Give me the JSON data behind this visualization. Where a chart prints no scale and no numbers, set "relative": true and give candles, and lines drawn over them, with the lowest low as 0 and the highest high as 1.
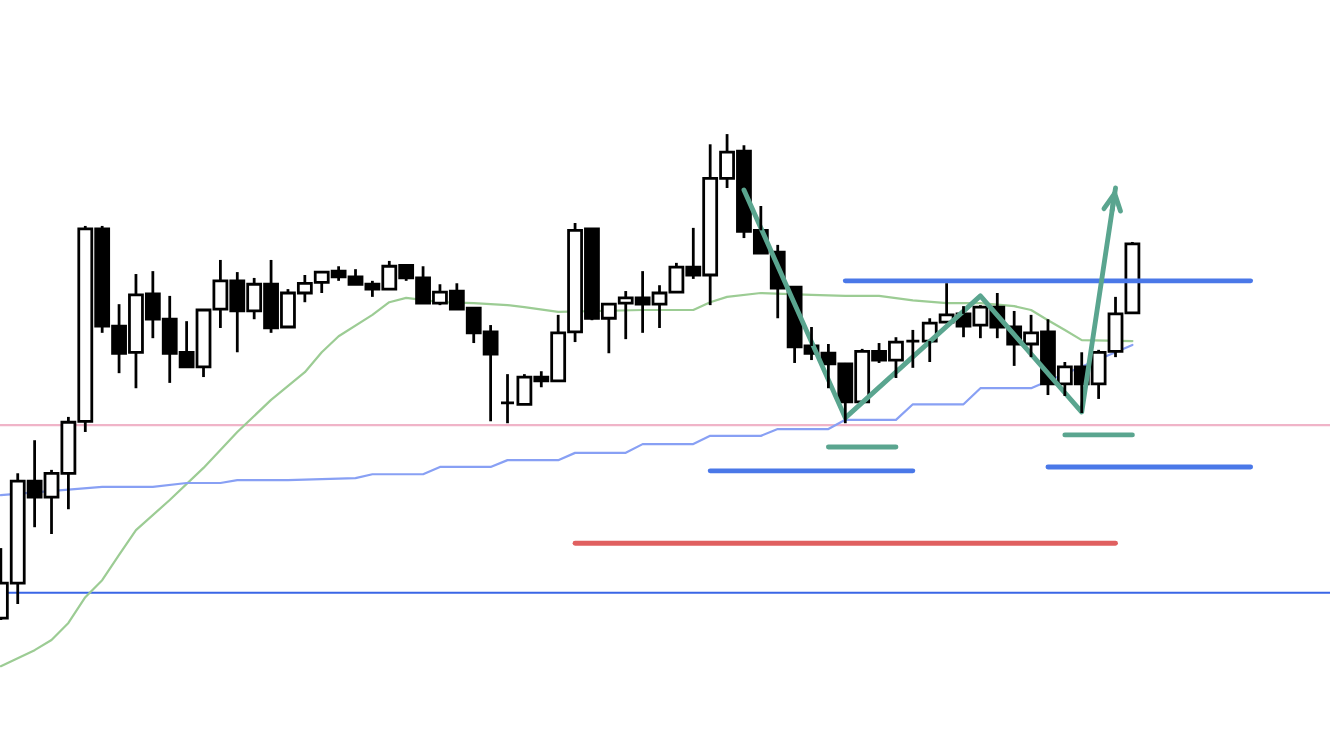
{
  "chart_data": {
    "type": "candlestick",
    "relative": true,
    "grid": false,
    "categories": [
      null,
      null,
      null,
      null,
      null,
      null,
      null,
      null,
      null,
      null,
      null,
      null,
      null,
      null,
      null,
      null,
      null,
      null,
      null,
      null,
      null,
      null,
      null,
      null,
      null,
      null,
      null,
      null,
      null,
      null,
      null,
      null,
      null,
      null,
      null,
      null,
      null,
      null,
      null,
      null,
      null,
      null,
      null,
      null,
      null,
      null,
      null,
      null,
      null,
      null,
      null,
      null,
      null,
      null,
      null,
      null,
      null,
      null,
      null,
      null,
      null,
      null,
      null,
      null,
      null,
      null,
      null,
      null,
      null,
      null,
      null,
      null,
      null,
      null,
      null,
      null,
      null,
      null,
      null
    ],
    "ohlc": [
      [
        0.004,
        0.148,
        0,
        0.076
      ],
      [
        0.076,
        0.302,
        0.033,
        0.286
      ],
      [
        0.286,
        0.37,
        0.191,
        0.253
      ],
      [
        0.253,
        0.309,
        0.177,
        0.302
      ],
      [
        0.302,
        0.418,
        0.228,
        0.407
      ],
      [
        0.409,
        0.811,
        0.387,
        0.805
      ],
      [
        0.805,
        0.811,
        0.591,
        0.605
      ],
      [
        0.605,
        0.65,
        0.508,
        0.549
      ],
      [
        0.551,
        0.712,
        0.477,
        0.669
      ],
      [
        0.671,
        0.718,
        0.58,
        0.619
      ],
      [
        0.619,
        0.667,
        0.488,
        0.549
      ],
      [
        0.551,
        0.615,
        0.521,
        0.521
      ],
      [
        0.521,
        0.64,
        0.5,
        0.638
      ],
      [
        0.64,
        0.741,
        0.601,
        0.698
      ],
      [
        0.698,
        0.716,
        0.551,
        0.636
      ],
      [
        0.636,
        0.704,
        0.619,
        0.691
      ],
      [
        0.691,
        0.741,
        0.591,
        0.601
      ],
      [
        0.603,
        0.681,
        0.603,
        0.673
      ],
      [
        0.673,
        0.71,
        0.654,
        0.693
      ],
      [
        0.695,
        0.716,
        0.673,
        0.716
      ],
      [
        0.718,
        0.728,
        0.698,
        0.706
      ],
      [
        0.706,
        0.722,
        0.691,
        0.691
      ],
      [
        0.691,
        0.698,
        0.665,
        0.681
      ],
      [
        0.681,
        0.739,
        0.681,
        0.728
      ],
      [
        0.73,
        0.73,
        0.698,
        0.704
      ],
      [
        0.704,
        0.728,
        0.652,
        0.652
      ],
      [
        0.652,
        0.691,
        0.648,
        0.675
      ],
      [
        0.677,
        0.693,
        0.64,
        0.64
      ],
      [
        0.642,
        0.642,
        0.57,
        0.591
      ],
      [
        0.593,
        0.607,
        0.409,
        0.547
      ],
      [
        0.447,
        0.506,
        0.405,
        0.447
      ],
      [
        0.444,
        0.506,
        0.444,
        0.5
      ],
      [
        0.5,
        0.512,
        0.479,
        0.492
      ],
      [
        0.492,
        0.628,
        0.492,
        0.591
      ],
      [
        0.593,
        0.817,
        0.572,
        0.802
      ],
      [
        0.805,
        0.805,
        0.617,
        0.621
      ],
      [
        0.621,
        0.65,
        0.549,
        0.65
      ],
      [
        0.652,
        0.677,
        0.578,
        0.663
      ],
      [
        0.663,
        0.718,
        0.591,
        0.65
      ],
      [
        0.65,
        0.689,
        0.601,
        0.673
      ],
      [
        0.675,
        0.735,
        0.673,
        0.726
      ],
      [
        0.726,
        0.807,
        0.702,
        0.71
      ],
      [
        0.71,
        0.979,
        0.648,
        0.909
      ],
      [
        0.909,
        1.0,
        0.889,
        0.963
      ],
      [
        0.965,
        0.977,
        0.786,
        0.8
      ],
      [
        0.802,
        0.852,
        0.755,
        0.755
      ],
      [
        0.757,
        0.772,
        0.621,
        0.683
      ],
      [
        0.685,
        0.685,
        0.529,
        0.562
      ],
      [
        0.564,
        0.603,
        0.535,
        0.549
      ],
      [
        0.549,
        0.568,
        0.477,
        0.527
      ],
      [
        0.527,
        0.529,
        0.405,
        0.449
      ],
      [
        0.449,
        0.558,
        0.449,
        0.553
      ],
      [
        0.553,
        0.57,
        0.529,
        0.535
      ],
      [
        0.535,
        0.582,
        0.498,
        0.572
      ],
      [
        0.574,
        0.597,
        0.519,
        0.574
      ],
      [
        0.574,
        0.621,
        0.531,
        0.611
      ],
      [
        0.613,
        0.693,
        0.613,
        0.628
      ],
      [
        0.63,
        0.646,
        0.582,
        0.605
      ],
      [
        0.607,
        0.648,
        0.58,
        0.644
      ],
      [
        0.644,
        0.673,
        0.58,
        0.603
      ],
      [
        0.603,
        0.636,
        0.523,
        0.568
      ],
      [
        0.568,
        0.628,
        0.541,
        0.591
      ],
      [
        0.593,
        0.619,
        0.463,
        0.486
      ],
      [
        0.486,
        0.531,
        0.461,
        0.521
      ],
      [
        0.521,
        0.551,
        0.426,
        0.486
      ],
      [
        0.486,
        0.556,
        0.455,
        0.551
      ],
      [
        0.553,
        0.665,
        0.541,
        0.63
      ],
      [
        0.632,
        0.778,
        0.63,
        0.774
      ],
      null,
      null,
      null,
      null,
      null,
      null,
      null,
      null,
      null,
      null,
      null
    ],
    "series": [
      {
        "type": "line",
        "color": "#9ccc94",
        "values": [
          -0.095,
          null,
          -0.062,
          -0.041,
          -0.006,
          0.047,
          0.082,
          0.134,
          0.185,
          null,
          0.247,
          null,
          0.313,
          null,
          0.387,
          null,
          0.453,
          null,
          0.51,
          0.551,
          0.584,
          null,
          0.628,
          0.654,
          0.663,
          null,
          0.654,
          null,
          0.652,
          null,
          0.648,
          0.644,
          null,
          0.634,
          null,
          null,
          null,
          null,
          0.638,
          null,
          0.638,
          0.638,
          0.654,
          0.665,
          null,
          0.673,
          null,
          null,
          0.669,
          null,
          0.667,
          null,
          0.667,
          null,
          0.658,
          null,
          0.652,
          null,
          0.652,
          null,
          0.646,
          0.638,
          0.617,
          0.597,
          0.576,
          null,
          null,
          0.574,
          null,
          null,
          null,
          null,
          null,
          null,
          null,
          null,
          null,
          null,
          null
        ]
      },
      {
        "type": "line",
        "color": "#88a0f4",
        "values": [
          0.257,
          null,
          null,
          null,
          null,
          null,
          0.274,
          null,
          null,
          0.274,
          null,
          0.282,
          0.282,
          0.282,
          0.288,
          0.288,
          0.288,
          0.288,
          null,
          null,
          null,
          0.292,
          0.3,
          0.3,
          0.3,
          0.3,
          0.315,
          0.315,
          0.315,
          0.315,
          0.329,
          0.329,
          0.329,
          0.329,
          0.344,
          0.344,
          0.344,
          0.344,
          0.362,
          0.362,
          0.362,
          0.362,
          0.379,
          0.379,
          0.379,
          0.379,
          0.393,
          0.393,
          0.393,
          0.393,
          0.412,
          0.412,
          0.412,
          0.412,
          0.444,
          0.444,
          0.444,
          0.444,
          0.477,
          0.477,
          0.477,
          0.477,
          null,
          null,
          null,
          null,
          null,
          0.566,
          null,
          null,
          null,
          null,
          null,
          null,
          null,
          null,
          null,
          null,
          null
        ]
      },
      {
        "type": "line",
        "color": "#4a78e8",
        "values": [
          null,
          null,
          null,
          null,
          null,
          null,
          null,
          null,
          null,
          null,
          null,
          null,
          null,
          null,
          null,
          null,
          null,
          null,
          null,
          null,
          null,
          null,
          null,
          null,
          null,
          null,
          null,
          null,
          null,
          null,
          null,
          null,
          null,
          null,
          null,
          null,
          null,
          null,
          null,
          null,
          null,
          null,
          null,
          null,
          null,
          null,
          null,
          null,
          null,
          null,
          0.698,
          null,
          null,
          null,
          null,
          null,
          null,
          null,
          null,
          null,
          null,
          null,
          null,
          null,
          null,
          null,
          null,
          null,
          null,
          null,
          null,
          null,
          null,
          null,
          0.698,
          null,
          null,
          null,
          null
        ]
      },
      {
        "type": "line",
        "color": "#4a78e8",
        "values": [
          null,
          null,
          null,
          null,
          null,
          null,
          null,
          null,
          null,
          null,
          null,
          null,
          null,
          null,
          null,
          null,
          null,
          null,
          null,
          null,
          null,
          null,
          null,
          null,
          null,
          null,
          null,
          null,
          null,
          null,
          null,
          null,
          null,
          null,
          null,
          null,
          null,
          null,
          null,
          null,
          null,
          null,
          0.307,
          null,
          null,
          null,
          null,
          null,
          null,
          null,
          null,
          null,
          null,
          null,
          0.307,
          null,
          null,
          null,
          null,
          null,
          null,
          null,
          null,
          null,
          null,
          null,
          null,
          null,
          null,
          null,
          null,
          null,
          null,
          null,
          null,
          null,
          null,
          null,
          null
        ]
      },
      {
        "type": "line",
        "color": "#4a78e8",
        "values": [
          null,
          null,
          null,
          null,
          null,
          null,
          null,
          null,
          null,
          null,
          null,
          null,
          null,
          null,
          null,
          null,
          null,
          null,
          null,
          null,
          null,
          null,
          null,
          null,
          null,
          null,
          null,
          null,
          null,
          null,
          null,
          null,
          null,
          null,
          null,
          null,
          null,
          null,
          null,
          null,
          null,
          null,
          null,
          null,
          null,
          null,
          null,
          null,
          null,
          null,
          null,
          null,
          null,
          null,
          null,
          null,
          null,
          null,
          null,
          null,
          null,
          null,
          0.315,
          null,
          null,
          null,
          null,
          null,
          null,
          null,
          null,
          null,
          null,
          null,
          0.315,
          null,
          null,
          null,
          null
        ]
      },
      {
        "type": "line",
        "color": "#5aa58f",
        "values": [
          null,
          null,
          null,
          null,
          null,
          null,
          null,
          null,
          null,
          null,
          null,
          null,
          null,
          null,
          null,
          null,
          null,
          null,
          null,
          null,
          null,
          null,
          null,
          null,
          null,
          null,
          null,
          null,
          null,
          null,
          null,
          null,
          null,
          null,
          null,
          null,
          null,
          null,
          null,
          null,
          null,
          null,
          null,
          null,
          null,
          null,
          null,
          null,
          null,
          0.356,
          null,
          null,
          null,
          0.356,
          null,
          null,
          null,
          null,
          null,
          null,
          null,
          null,
          null,
          null,
          null,
          null,
          null,
          null,
          null,
          null,
          null,
          null,
          null,
          null,
          null,
          null,
          null,
          null,
          null
        ]
      },
      {
        "type": "line",
        "color": "#5aa58f",
        "values": [
          null,
          null,
          null,
          null,
          null,
          null,
          null,
          null,
          null,
          null,
          null,
          null,
          null,
          null,
          null,
          null,
          null,
          null,
          null,
          null,
          null,
          null,
          null,
          null,
          null,
          null,
          null,
          null,
          null,
          null,
          null,
          null,
          null,
          null,
          null,
          null,
          null,
          null,
          null,
          null,
          null,
          null,
          null,
          null,
          null,
          null,
          null,
          null,
          null,
          null,
          null,
          null,
          null,
          null,
          null,
          null,
          null,
          null,
          null,
          null,
          null,
          null,
          null,
          0.381,
          null,
          null,
          null,
          0.381,
          null,
          null,
          null,
          null,
          null,
          null,
          null,
          null,
          null,
          null,
          null
        ]
      },
      {
        "type": "line",
        "color": "#e06060",
        "values": [
          null,
          null,
          null,
          null,
          null,
          null,
          null,
          null,
          null,
          null,
          null,
          null,
          null,
          null,
          null,
          null,
          null,
          null,
          null,
          null,
          null,
          null,
          null,
          null,
          null,
          null,
          null,
          null,
          null,
          null,
          null,
          null,
          null,
          null,
          0.158,
          null,
          null,
          null,
          null,
          null,
          null,
          null,
          null,
          null,
          null,
          null,
          null,
          null,
          null,
          null,
          null,
          null,
          null,
          null,
          null,
          null,
          null,
          null,
          null,
          null,
          null,
          null,
          null,
          null,
          null,
          null,
          0.158,
          null,
          null,
          null,
          null,
          null,
          null,
          null,
          null,
          null,
          null,
          null,
          null
        ]
      },
      {
        "type": "line",
        "color": "#5aa58f",
        "values": [
          null,
          null,
          null,
          null,
          null,
          null,
          null,
          null,
          null,
          null,
          null,
          null,
          null,
          null,
          null,
          null,
          null,
          null,
          null,
          null,
          null,
          null,
          null,
          null,
          null,
          null,
          null,
          null,
          null,
          null,
          null,
          null,
          null,
          null,
          null,
          null,
          null,
          null,
          null,
          null,
          null,
          null,
          null,
          null,
          0.885,
          null,
          null,
          null,
          null,
          null,
          0.416,
          null,
          null,
          null,
          null,
          null,
          null,
          null,
          0.667,
          null,
          null,
          null,
          null,
          null,
          0.428,
          null,
          0.889,
          null,
          null,
          null,
          null,
          null,
          null,
          null,
          null,
          null,
          null,
          null,
          null
        ]
      }
    ],
    "ref_lines": [
      {
        "axis": "y",
        "value": 0.401,
        "color": "#f0b4c8"
      },
      {
        "axis": "y",
        "value": 0.056,
        "color": "#3a66e6"
      }
    ]
  }
}
